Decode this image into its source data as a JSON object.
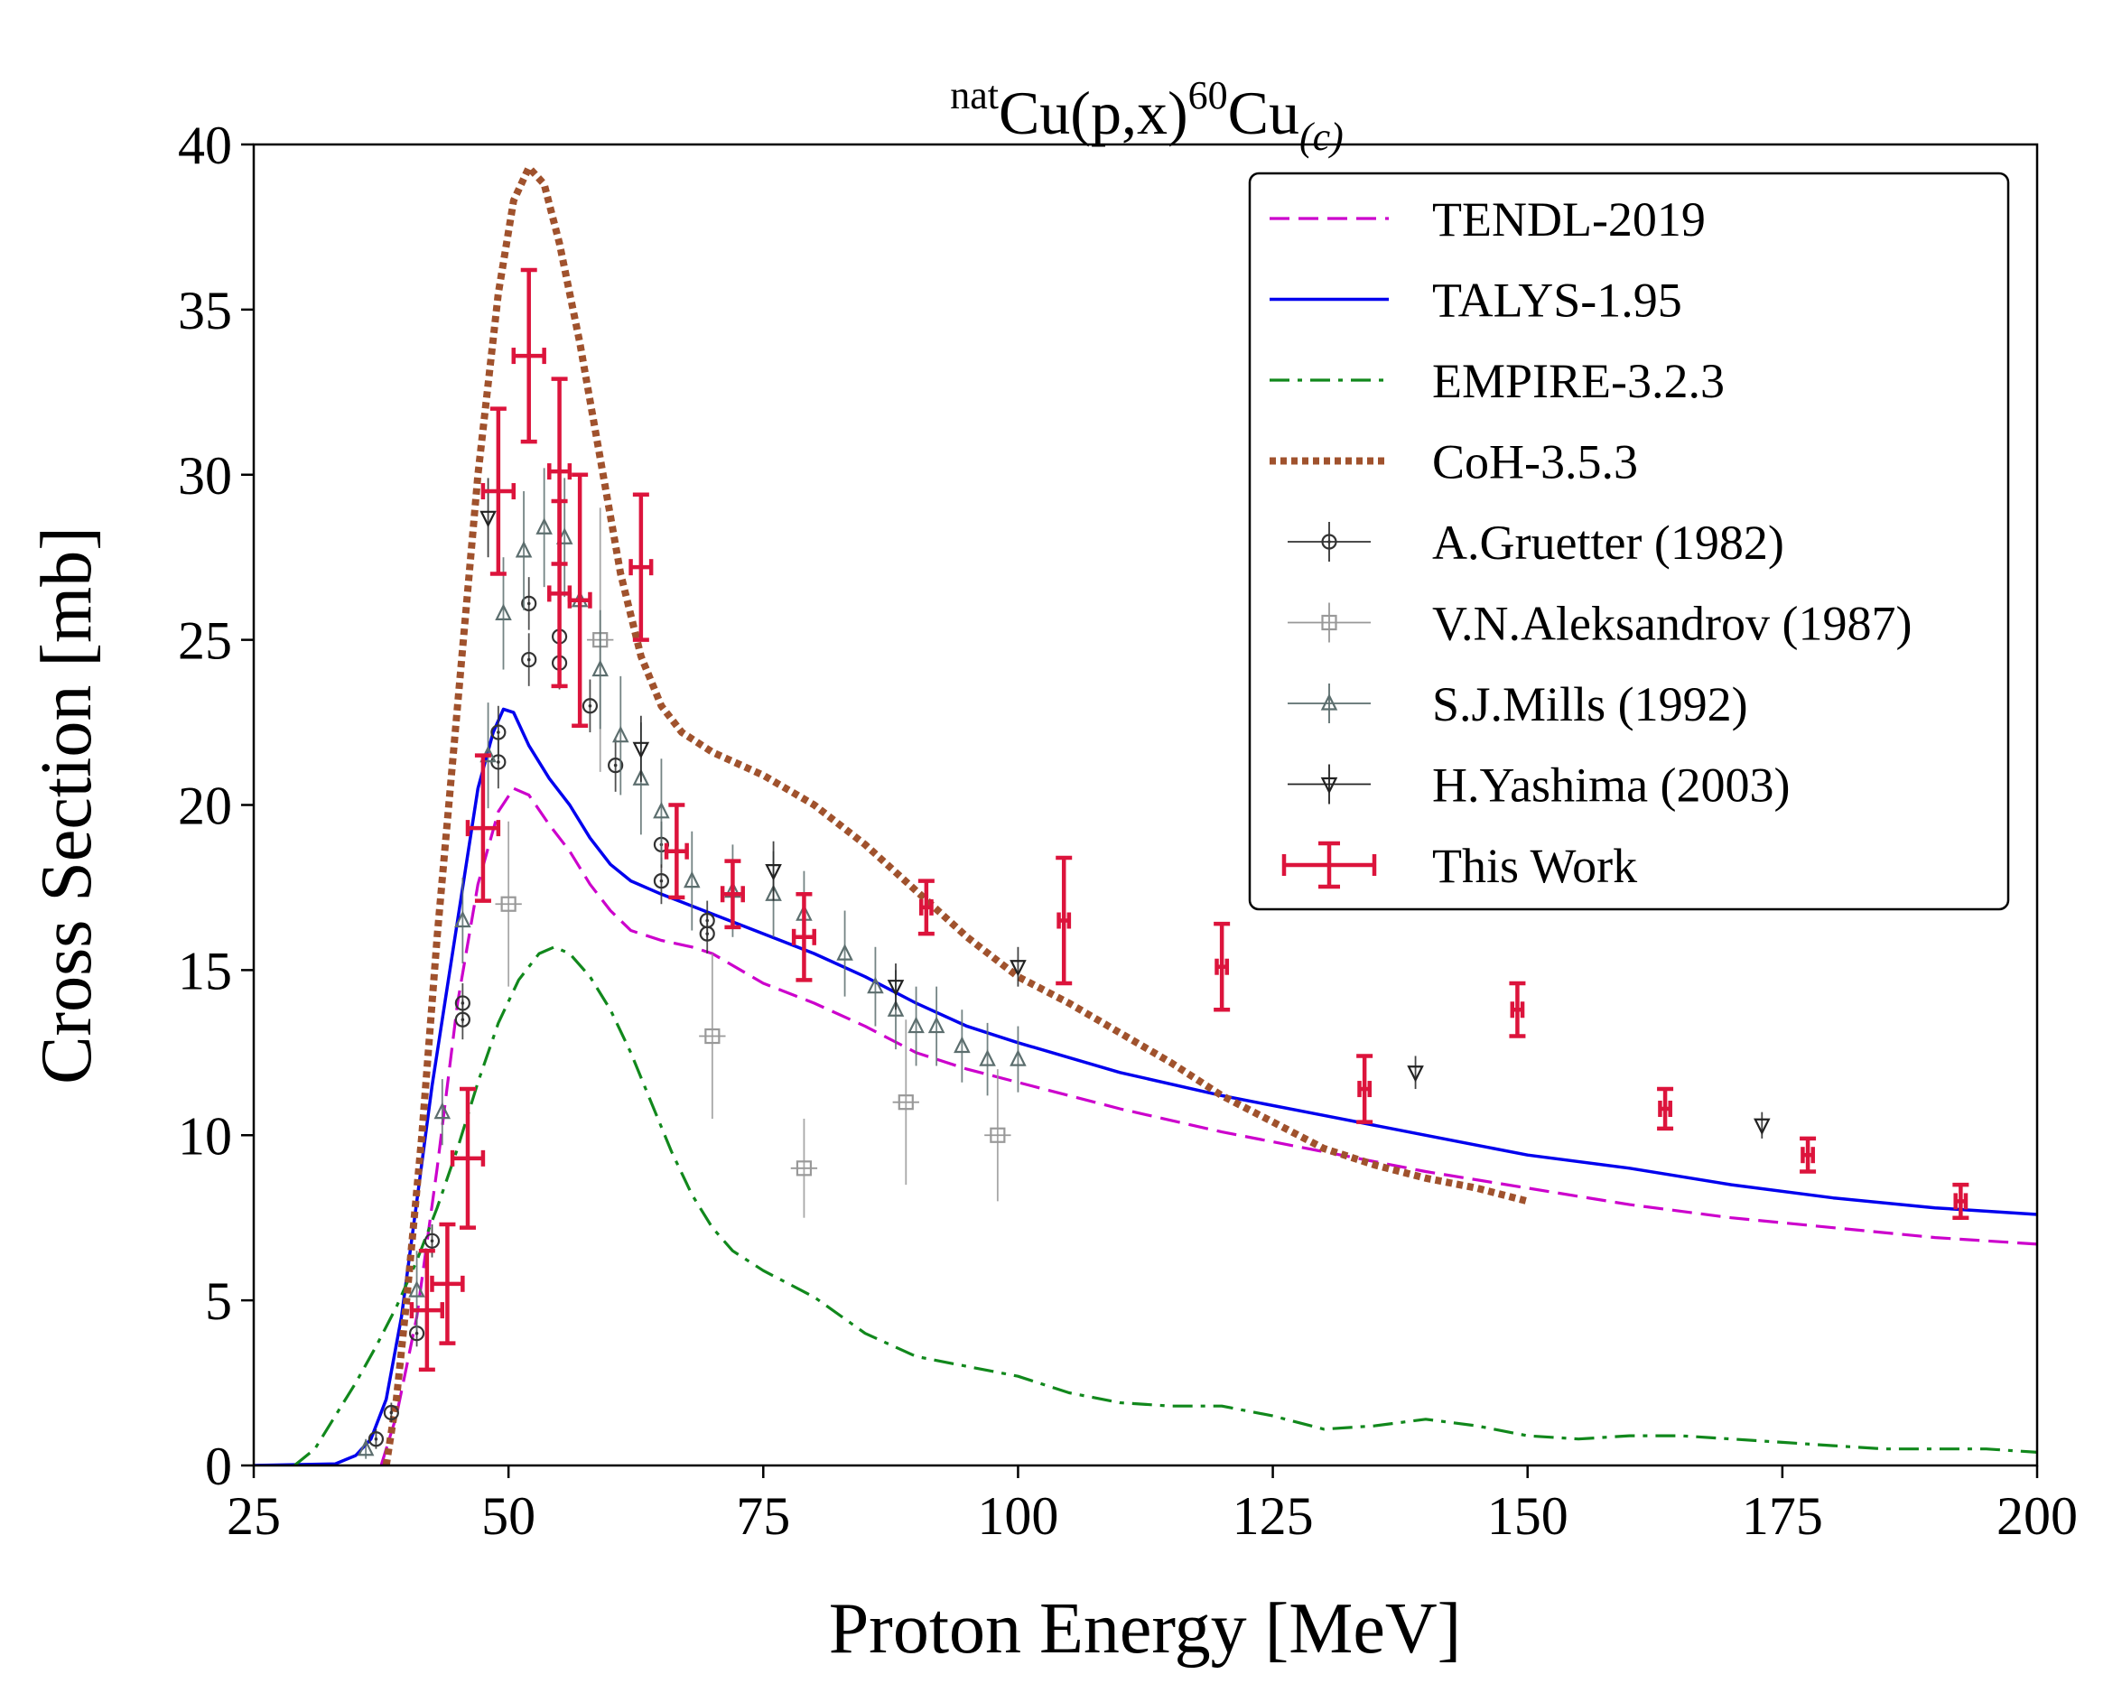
{
  "chart_data": {
    "type": "line",
    "title_parts": {
      "sup1": "nat",
      "main1": "Cu(p,x)",
      "sup2": "60",
      "main2": "Cu",
      "sub": "(c)"
    },
    "title": "natCu(p,x)60Cu(c)",
    "xlabel": "Proton Energy [MeV]",
    "ylabel": "Cross Section [mb]",
    "xlim": [
      25,
      200
    ],
    "ylim": [
      0,
      40
    ],
    "xticks": [
      25,
      50,
      75,
      100,
      125,
      150,
      175,
      200
    ],
    "yticks": [
      0,
      5,
      10,
      15,
      20,
      25,
      30,
      35,
      40
    ],
    "legend_position": "top-right",
    "curves": [
      {
        "name": "TENDL-2019",
        "color": "#cc00cc",
        "style": "dashed",
        "points": [
          [
            37.5,
            0
          ],
          [
            39,
            1.5
          ],
          [
            41,
            4.5
          ],
          [
            43,
            9
          ],
          [
            45,
            14
          ],
          [
            47,
            17.6
          ],
          [
            49,
            19.8
          ],
          [
            50.5,
            20.5
          ],
          [
            52,
            20.3
          ],
          [
            54,
            19.4
          ],
          [
            56,
            18.6
          ],
          [
            58,
            17.6
          ],
          [
            60,
            16.8
          ],
          [
            62,
            16.2
          ],
          [
            65,
            15.9
          ],
          [
            68,
            15.7
          ],
          [
            70,
            15.5
          ],
          [
            75,
            14.6
          ],
          [
            80,
            14
          ],
          [
            85,
            13.3
          ],
          [
            90,
            12.5
          ],
          [
            95,
            12
          ],
          [
            100,
            11.6
          ],
          [
            110,
            10.8
          ],
          [
            120,
            10.1
          ],
          [
            130,
            9.5
          ],
          [
            140,
            8.9
          ],
          [
            150,
            8.4
          ],
          [
            160,
            7.9
          ],
          [
            170,
            7.5
          ],
          [
            180,
            7.2
          ],
          [
            190,
            6.9
          ],
          [
            200,
            6.7
          ]
        ]
      },
      {
        "name": "TALYS-1.95",
        "color": "#0000ee",
        "style": "solid",
        "points": [
          [
            25,
            0
          ],
          [
            33,
            0.05
          ],
          [
            35,
            0.3
          ],
          [
            36.5,
            0.8
          ],
          [
            38,
            2
          ],
          [
            39.5,
            4.5
          ],
          [
            41,
            8
          ],
          [
            42.5,
            11.5
          ],
          [
            44,
            14.5
          ],
          [
            45.5,
            17.5
          ],
          [
            47,
            20.5
          ],
          [
            48.5,
            22.2
          ],
          [
            49.5,
            22.9
          ],
          [
            50.5,
            22.8
          ],
          [
            52,
            21.8
          ],
          [
            54,
            20.8
          ],
          [
            56,
            20
          ],
          [
            58,
            19
          ],
          [
            60,
            18.2
          ],
          [
            62,
            17.7
          ],
          [
            65,
            17.3
          ],
          [
            70,
            16.7
          ],
          [
            75,
            16.1
          ],
          [
            80,
            15.5
          ],
          [
            85,
            14.8
          ],
          [
            90,
            14
          ],
          [
            95,
            13.3
          ],
          [
            100,
            12.8
          ],
          [
            110,
            11.9
          ],
          [
            120,
            11.2
          ],
          [
            130,
            10.6
          ],
          [
            140,
            10
          ],
          [
            150,
            9.4
          ],
          [
            160,
            9
          ],
          [
            170,
            8.5
          ],
          [
            180,
            8.1
          ],
          [
            190,
            7.8
          ],
          [
            200,
            7.6
          ]
        ]
      },
      {
        "name": "EMPIRE-3.2.3",
        "color": "#11881c",
        "style": "dashdot",
        "points": [
          [
            29,
            0
          ],
          [
            31,
            0.5
          ],
          [
            33,
            1.5
          ],
          [
            35,
            2.5
          ],
          [
            37,
            3.6
          ],
          [
            39,
            4.8
          ],
          [
            41,
            6.2
          ],
          [
            43,
            7.8
          ],
          [
            45,
            9.6
          ],
          [
            47,
            11.6
          ],
          [
            49,
            13.4
          ],
          [
            51,
            14.7
          ],
          [
            53,
            15.5
          ],
          [
            54.5,
            15.7
          ],
          [
            56,
            15.5
          ],
          [
            58,
            14.8
          ],
          [
            60,
            13.8
          ],
          [
            62,
            12.5
          ],
          [
            64,
            11
          ],
          [
            66,
            9.5
          ],
          [
            68,
            8.2
          ],
          [
            70,
            7.2
          ],
          [
            72,
            6.5
          ],
          [
            75,
            5.9
          ],
          [
            80,
            5.1
          ],
          [
            85,
            4
          ],
          [
            90,
            3.3
          ],
          [
            95,
            3
          ],
          [
            100,
            2.7
          ],
          [
            105,
            2.2
          ],
          [
            110,
            1.9
          ],
          [
            115,
            1.8
          ],
          [
            120,
            1.8
          ],
          [
            125,
            1.5
          ],
          [
            130,
            1.1
          ],
          [
            135,
            1.2
          ],
          [
            140,
            1.4
          ],
          [
            145,
            1.2
          ],
          [
            150,
            0.9
          ],
          [
            155,
            0.8
          ],
          [
            160,
            0.9
          ],
          [
            165,
            0.9
          ],
          [
            170,
            0.8
          ],
          [
            175,
            0.7
          ],
          [
            180,
            0.6
          ],
          [
            185,
            0.5
          ],
          [
            190,
            0.5
          ],
          [
            195,
            0.5
          ],
          [
            200,
            0.4
          ]
        ]
      },
      {
        "name": "CoH-3.5.3",
        "color": "#a0522d",
        "style": "dotted",
        "points": [
          [
            38,
            0
          ],
          [
            39,
            2
          ],
          [
            40,
            5
          ],
          [
            41.5,
            10
          ],
          [
            43,
            16
          ],
          [
            45,
            23
          ],
          [
            47,
            30
          ],
          [
            49,
            35.5
          ],
          [
            50.5,
            38.3
          ],
          [
            52,
            39.3
          ],
          [
            53.5,
            38.8
          ],
          [
            55,
            37
          ],
          [
            57,
            34
          ],
          [
            59,
            30.5
          ],
          [
            61,
            27
          ],
          [
            63,
            24.5
          ],
          [
            65,
            23
          ],
          [
            67,
            22.2
          ],
          [
            70,
            21.6
          ],
          [
            75,
            20.9
          ],
          [
            80,
            20
          ],
          [
            85,
            18.8
          ],
          [
            90,
            17.4
          ],
          [
            95,
            16
          ],
          [
            100,
            14.8
          ],
          [
            105,
            14
          ],
          [
            110,
            13.1
          ],
          [
            115,
            12.2
          ],
          [
            120,
            11.2
          ],
          [
            125,
            10.4
          ],
          [
            130,
            9.6
          ],
          [
            135,
            9.1
          ],
          [
            140,
            8.7
          ],
          [
            145,
            8.4
          ],
          [
            150,
            8
          ]
        ]
      }
    ],
    "scatter": [
      {
        "name": "A.Gruetter (1982)",
        "color": "#333333",
        "marker": "circle",
        "points": [
          [
            37,
            0.8,
            0.3
          ],
          [
            38.5,
            1.6,
            0.3
          ],
          [
            41,
            4,
            0.4
          ],
          [
            42.5,
            6.8,
            0.5
          ],
          [
            45.5,
            13.5,
            0.6
          ],
          [
            45.5,
            14,
            0.6
          ],
          [
            49,
            21.3,
            0.8
          ],
          [
            49,
            22.2,
            0.8
          ],
          [
            52,
            24.4,
            0.8
          ],
          [
            52,
            26.1,
            0.8
          ],
          [
            55,
            25.1,
            0.8
          ],
          [
            55,
            24.3,
            0.8
          ],
          [
            58,
            23,
            0.8
          ],
          [
            60.5,
            21.2,
            0.8
          ],
          [
            65,
            18.8,
            0.7
          ],
          [
            65,
            17.7,
            0.7
          ],
          [
            69.5,
            16.5,
            0.6
          ],
          [
            69.5,
            16.1,
            0.6
          ]
        ]
      },
      {
        "name": "V.N.Aleksandrov (1987)",
        "color": "#999999",
        "marker": "square",
        "points": [
          [
            50,
            17,
            2.5
          ],
          [
            59,
            25,
            4
          ],
          [
            70,
            13,
            2.5
          ],
          [
            79,
            9,
            1.5
          ],
          [
            89,
            11,
            2.5
          ],
          [
            98,
            10,
            2
          ]
        ]
      },
      {
        "name": "S.J.Mills (1992)",
        "color": "#5c6e6e",
        "marker": "triangle-up",
        "points": [
          [
            36,
            0.5,
            0.3
          ],
          [
            41,
            5.3,
            1.2
          ],
          [
            43.5,
            10.7,
            1
          ],
          [
            45.5,
            16.5,
            1.3
          ],
          [
            48,
            21.5,
            1.6
          ],
          [
            49.5,
            25.8,
            1.7
          ],
          [
            51.5,
            27.7,
            1.8
          ],
          [
            53.5,
            28.4,
            1.8
          ],
          [
            55.5,
            28.1,
            1.8
          ],
          [
            57,
            26.2,
            1.8
          ],
          [
            59,
            24.1,
            1.8
          ],
          [
            61,
            22.1,
            1.8
          ],
          [
            63,
            20.8,
            1.7
          ],
          [
            65,
            19.8,
            1.6
          ],
          [
            68,
            17.7,
            1.5
          ],
          [
            72,
            17.4,
            1.4
          ],
          [
            76,
            17.3,
            1.3
          ],
          [
            79,
            16.7,
            1.3
          ],
          [
            83,
            15.5,
            1.3
          ],
          [
            86,
            14.5,
            1.2
          ],
          [
            88,
            13.8,
            1.2
          ],
          [
            90,
            13.3,
            1.2
          ],
          [
            92,
            13.3,
            1.2
          ],
          [
            94.5,
            12.7,
            1.1
          ],
          [
            97,
            12.3,
            1.1
          ],
          [
            100,
            12.3,
            1
          ]
        ]
      },
      {
        "name": "H.Yashima (2003)",
        "color": "#222222",
        "marker": "triangle-down",
        "points": [
          [
            48,
            28.7,
            1.2
          ],
          [
            63,
            21.7,
            1
          ],
          [
            76,
            18,
            0.9
          ],
          [
            88,
            14.5,
            0.7
          ],
          [
            100,
            15.1,
            0.6
          ],
          [
            139,
            11.9,
            0.5
          ],
          [
            173,
            10.3,
            0.4
          ]
        ]
      }
    ],
    "this_work": {
      "name": "This Work",
      "color": "#dc143c",
      "points": [
        [
          42,
          4.7,
          1.8,
          1.5
        ],
        [
          44,
          5.5,
          1.8,
          1.5
        ],
        [
          46,
          9.3,
          2.1,
          1.5
        ],
        [
          47.5,
          19.3,
          2.2,
          1.5
        ],
        [
          49,
          29.5,
          2.5,
          1.5
        ],
        [
          52,
          33.6,
          2.6,
          1.5
        ],
        [
          55,
          30.1,
          2.8,
          1
        ],
        [
          55,
          26.4,
          2.8,
          1
        ],
        [
          57,
          26.2,
          3.8,
          1
        ],
        [
          63,
          27.2,
          2.2,
          1
        ],
        [
          66.5,
          18.6,
          1.4,
          1
        ],
        [
          72,
          17.3,
          1,
          1
        ],
        [
          79,
          16,
          1.3,
          1
        ],
        [
          91,
          16.9,
          0.8,
          0.5
        ],
        [
          104.5,
          16.5,
          1.9,
          0.5
        ],
        [
          120,
          15.1,
          1.3,
          0.5
        ],
        [
          134,
          11.4,
          1,
          0.5
        ],
        [
          149,
          13.8,
          0.8,
          0.5
        ],
        [
          163.5,
          10.8,
          0.6,
          0.5
        ],
        [
          177.5,
          9.4,
          0.5,
          0.5
        ],
        [
          192.5,
          8,
          0.5,
          0.5
        ]
      ]
    }
  }
}
